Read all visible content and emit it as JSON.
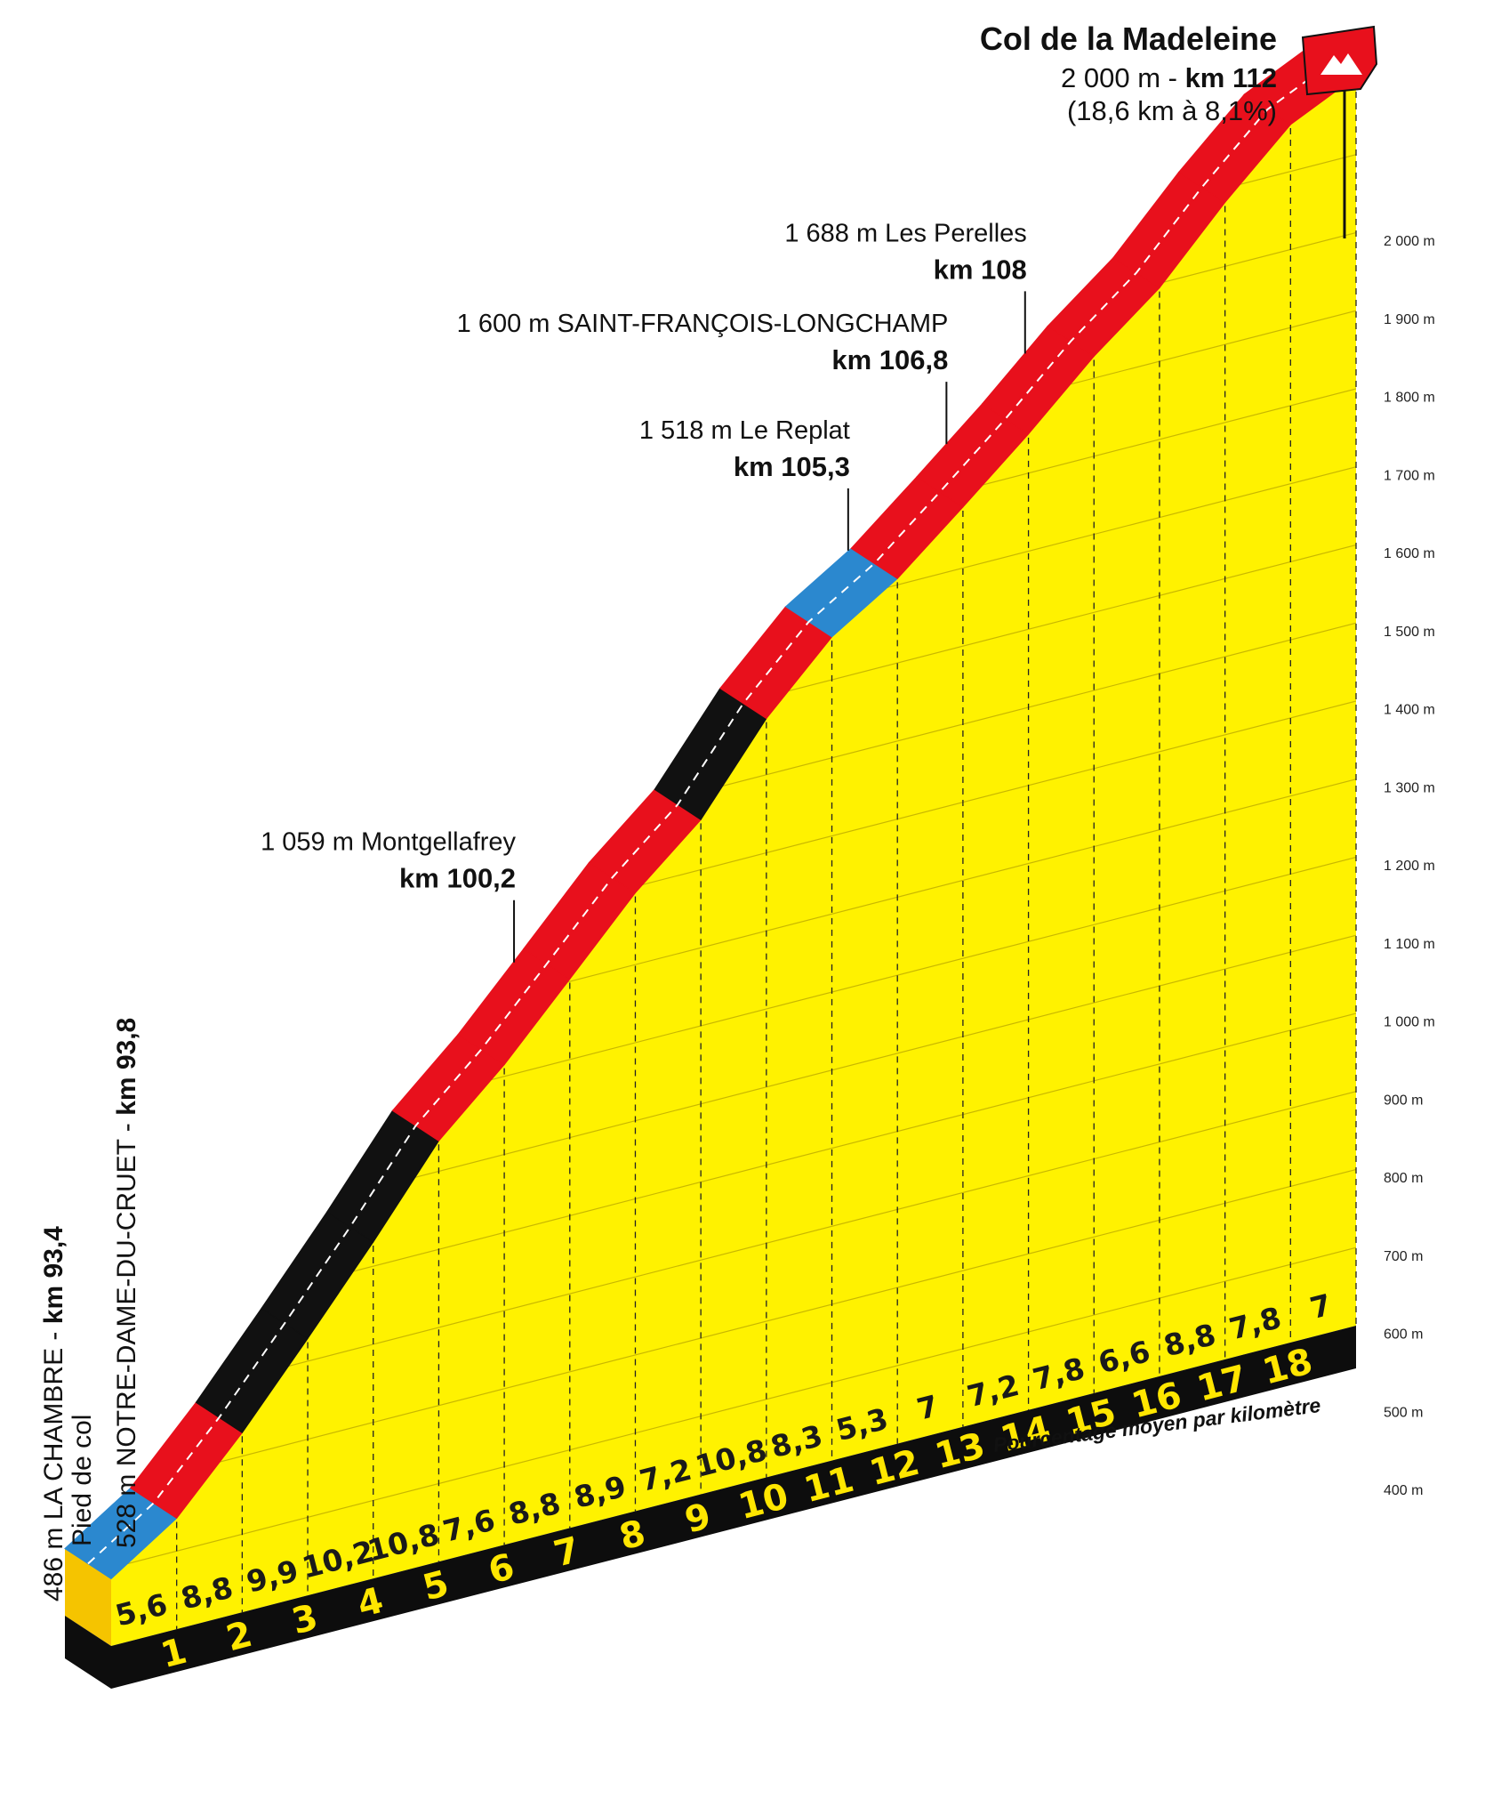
{
  "chart_data": {
    "type": "area",
    "title": "Col de la Madeleine",
    "summit": {
      "alt_prefix": "2 000 m - ",
      "km_label": "km 112",
      "subtitle": "(18,6 km à 8,1%)"
    },
    "y_axis": {
      "unit": "m",
      "ticks": [
        "400 m",
        "500 m",
        "600 m",
        "700 m",
        "800 m",
        "900 m",
        "1 000 m",
        "1 100 m",
        "1 200 m",
        "1 300 m",
        "1 400 m",
        "1 500 m",
        "1 600 m",
        "1 700 m",
        "1 800 m",
        "1 900 m",
        "2 000 m"
      ],
      "range": [
        400,
        2000
      ],
      "grid": true
    },
    "x_km_markers": [
      "1",
      "2",
      "3",
      "4",
      "5",
      "6",
      "7",
      "8",
      "9",
      "10",
      "11",
      "12",
      "13",
      "14",
      "15",
      "16",
      "17",
      "18"
    ],
    "segment_gradients": [
      "5,6",
      "8,8",
      "9,9",
      "10,2",
      "10,8",
      "7,6",
      "8,8",
      "8,9",
      "7,2",
      "10,8",
      "8,3",
      "5,3",
      "7",
      "7,2",
      "7,8",
      "6,6",
      "8,8",
      "7,8",
      "7"
    ],
    "segment_difficulty": [
      "easy",
      "hard",
      "very-hard",
      "very-hard",
      "very-hard",
      "hard",
      "hard",
      "hard",
      "hard",
      "very-hard",
      "hard",
      "easy",
      "hard",
      "hard",
      "hard",
      "hard",
      "hard",
      "hard",
      "hard"
    ],
    "start_altitude": 486,
    "altitudes_at_km": [
      486,
      542,
      630,
      729,
      831,
      939,
      1015,
      1103,
      1192,
      1264,
      1372,
      1455,
      1508,
      1578,
      1650,
      1728,
      1794,
      1882,
      1960,
      2000
    ],
    "difficulty_colors": {
      "easy": "#2b88cf",
      "hard": "#e8101c",
      "very-hard": "#111111"
    },
    "fill_color": "#fff200",
    "gradient_caption": "Pourcentage moyen par kilomètre",
    "start_labels": {
      "line1_prefix": "486 m LA CHAMBRE - ",
      "line1_km": "km 93,4",
      "line2": "Pied de col",
      "line3_prefix": "528 m NOTRE-DAME-DU-CRUET - ",
      "line3_km": "km 93,8"
    },
    "landmarks": [
      {
        "name": "1 059 m Montgellafrey",
        "km": "km 100,2",
        "at_km": 6.8
      },
      {
        "name": "1 518 m Le Replat",
        "km": "km 105,3",
        "at_km": 11.9
      },
      {
        "name": "1 600 m SAINT-FRANÇOIS-LONGCHAMP",
        "km": "km 106,8",
        "at_km": 13.4
      },
      {
        "name": "1 688 m Les Perelles",
        "km": "km 108",
        "at_km": 14.6
      }
    ]
  }
}
